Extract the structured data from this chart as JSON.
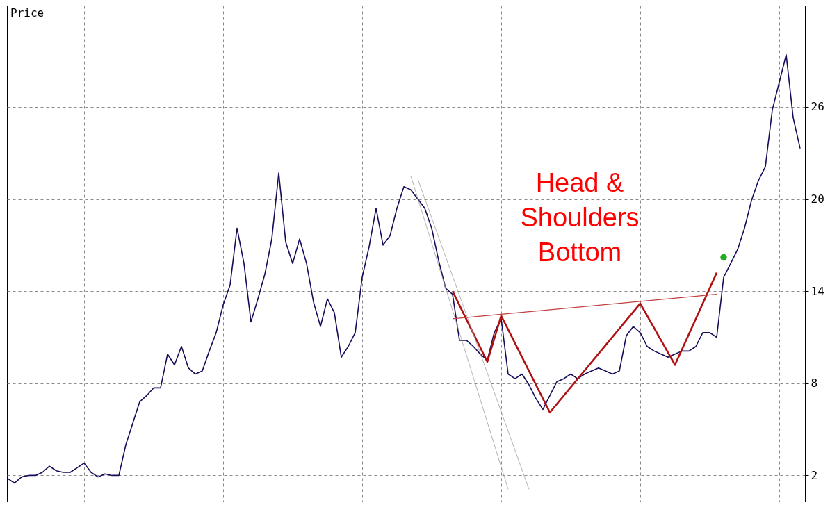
{
  "chart_data": {
    "type": "line",
    "ylabel": "Price",
    "annotations": [
      "Head & Shoulders Bottom"
    ],
    "categories": [
      null,
      null,
      null,
      null,
      null,
      null,
      null,
      null,
      null,
      null,
      null,
      null,
      null,
      null,
      null,
      null,
      null,
      null,
      null,
      null,
      null,
      null,
      null,
      null,
      null,
      null,
      null,
      null,
      null,
      null,
      null,
      null,
      null,
      null,
      null,
      null,
      null,
      null,
      null,
      null,
      null,
      null,
      null,
      null,
      null,
      null,
      null,
      null,
      null,
      null,
      null,
      null,
      null,
      null,
      null,
      null,
      null,
      null,
      null,
      null,
      null,
      null,
      null,
      null,
      null,
      null,
      null,
      null,
      null,
      null,
      null,
      null,
      null,
      null,
      null,
      null,
      null,
      null,
      null,
      null,
      null,
      null,
      null,
      null,
      null,
      null,
      null,
      null,
      null,
      null,
      null,
      null,
      null,
      null,
      null,
      null,
      null,
      null,
      null,
      null,
      null,
      null,
      null,
      null,
      null,
      null,
      null,
      null,
      null,
      null,
      null,
      null,
      null,
      null,
      null
    ],
    "ylim": [
      0.3,
      32.6
    ],
    "yticks": [
      2,
      8,
      14,
      20,
      26
    ],
    "grid": true,
    "tick_labels": "y",
    "series": [
      {
        "color": "#160c5a",
        "values": [
          1.8,
          1.5,
          1.9,
          2.0,
          2.0,
          2.2,
          2.6,
          2.3,
          2.2,
          2.2,
          2.5,
          2.8,
          2.2,
          1.9,
          2.1,
          2.0,
          2.0,
          4.0,
          5.4,
          6.8,
          7.2,
          7.7,
          7.7,
          9.9,
          9.2,
          10.4,
          9.0,
          8.6,
          8.8,
          10.1,
          11.3,
          13.1,
          14.4,
          18.1,
          15.8,
          12.0,
          13.5,
          15.1,
          17.4,
          21.7,
          17.2,
          15.8,
          17.4,
          15.8,
          13.3,
          11.7,
          13.5,
          12.6,
          9.7,
          10.4,
          11.3,
          14.9,
          16.9,
          19.4,
          17.0,
          17.6,
          19.4,
          20.8,
          20.6,
          20.0,
          19.4,
          18.1,
          16.0,
          14.2,
          13.8,
          10.8,
          10.8,
          10.4,
          9.9,
          9.5,
          11.3,
          12.2,
          8.6,
          8.3,
          8.6,
          7.9,
          7.0,
          6.3,
          7.2,
          8.1,
          8.3,
          8.6,
          8.3,
          8.6,
          8.8,
          9.0,
          8.8,
          8.6,
          8.8,
          11.1,
          11.7,
          11.3,
          10.4,
          10.1,
          9.9,
          9.7,
          9.9,
          10.1,
          10.1,
          10.4,
          11.3,
          11.3,
          11.0,
          14.9,
          15.8,
          16.7,
          18.1,
          19.9,
          21.2,
          22.1,
          25.8,
          27.6,
          29.4,
          25.3,
          23.3
        ]
      },
      {
        "color": "#b01010",
        "values": [
          null,
          null,
          null,
          null,
          null,
          null,
          null,
          null,
          null,
          null,
          null,
          null,
          null,
          null,
          null,
          null,
          null,
          null,
          null,
          null,
          null,
          null,
          null,
          null,
          null,
          null,
          null,
          null,
          null,
          null,
          null,
          null,
          null,
          null,
          null,
          null,
          null,
          null,
          null,
          null,
          null,
          null,
          null,
          null,
          null,
          null,
          null,
          null,
          null,
          null,
          null,
          null,
          null,
          null,
          null,
          null,
          null,
          null,
          null,
          null,
          null,
          null,
          null,
          null,
          14.0,
          null,
          null,
          null,
          null,
          9.4,
          null,
          12.4,
          null,
          null,
          null,
          null,
          null,
          null,
          6.1,
          null,
          null,
          null,
          null,
          null,
          null,
          null,
          null,
          null,
          null,
          null,
          null,
          13.2,
          null,
          null,
          null,
          null,
          9.2,
          null,
          null,
          null,
          null,
          null,
          15.2,
          null,
          null,
          null,
          null,
          null,
          null,
          null,
          null,
          null,
          null,
          null,
          null
        ]
      },
      {
        "color": "#c04040",
        "values": [
          null,
          null,
          null,
          null,
          null,
          null,
          null,
          null,
          null,
          null,
          null,
          null,
          null,
          null,
          null,
          null,
          null,
          null,
          null,
          null,
          null,
          null,
          null,
          null,
          null,
          null,
          null,
          null,
          null,
          null,
          null,
          null,
          null,
          null,
          null,
          null,
          null,
          null,
          null,
          null,
          null,
          null,
          null,
          null,
          null,
          null,
          null,
          null,
          null,
          null,
          null,
          null,
          null,
          null,
          null,
          null,
          null,
          null,
          null,
          null,
          null,
          null,
          null,
          null,
          12.2,
          null,
          null,
          null,
          null,
          null,
          null,
          null,
          null,
          null,
          null,
          null,
          null,
          null,
          null,
          null,
          null,
          null,
          null,
          null,
          null,
          null,
          null,
          null,
          null,
          null,
          null,
          null,
          null,
          null,
          null,
          null,
          null,
          null,
          null,
          null,
          null,
          null,
          13.8,
          null,
          null,
          null,
          null,
          null,
          null,
          null,
          null,
          null,
          null,
          null,
          null
        ]
      },
      {
        "color": "#a0a0a0",
        "values": [
          null,
          null,
          null,
          null,
          null,
          null,
          null,
          null,
          null,
          null,
          null,
          null,
          null,
          null,
          null,
          null,
          null,
          null,
          null,
          null,
          null,
          null,
          null,
          null,
          null,
          null,
          null,
          null,
          null,
          null,
          null,
          null,
          null,
          null,
          null,
          null,
          null,
          null,
          null,
          null,
          null,
          null,
          null,
          null,
          null,
          null,
          null,
          null,
          null,
          null,
          null,
          null,
          null,
          null,
          null,
          null,
          null,
          null,
          21.5,
          null,
          null,
          null,
          null,
          null,
          null,
          null,
          null,
          null,
          null,
          null,
          null,
          null,
          1.1,
          null,
          null,
          null,
          null,
          null,
          null,
          null,
          null,
          null,
          null,
          null,
          null,
          null,
          null,
          null,
          null,
          null,
          null,
          null,
          null,
          null,
          null,
          null,
          null,
          null,
          null,
          null,
          null,
          null,
          null,
          null,
          null,
          null,
          null,
          null,
          null,
          null,
          null,
          null,
          null,
          null,
          null
        ]
      },
      {
        "color": "#a0a0a0",
        "values": [
          null,
          null,
          null,
          null,
          null,
          null,
          null,
          null,
          null,
          null,
          null,
          null,
          null,
          null,
          null,
          null,
          null,
          null,
          null,
          null,
          null,
          null,
          null,
          null,
          null,
          null,
          null,
          null,
          null,
          null,
          null,
          null,
          null,
          null,
          null,
          null,
          null,
          null,
          null,
          null,
          null,
          null,
          null,
          null,
          null,
          null,
          null,
          null,
          null,
          null,
          null,
          null,
          null,
          null,
          null,
          null,
          null,
          null,
          null,
          21.3,
          null,
          null,
          null,
          null,
          null,
          null,
          null,
          null,
          null,
          null,
          null,
          null,
          null,
          null,
          null,
          1.1,
          null,
          null,
          null,
          null,
          null,
          null,
          null,
          null,
          null,
          null,
          null,
          null,
          null,
          null,
          null,
          null,
          null,
          null,
          null,
          null,
          null,
          null,
          null,
          null,
          null,
          null,
          null,
          null,
          null,
          null,
          null,
          null,
          null,
          null,
          null,
          null,
          null,
          null,
          null
        ]
      },
      {
        "type": "scatter",
        "color": "#22aa22",
        "values": [
          null,
          null,
          null,
          null,
          null,
          null,
          null,
          null,
          null,
          null,
          null,
          null,
          null,
          null,
          null,
          null,
          null,
          null,
          null,
          null,
          null,
          null,
          null,
          null,
          null,
          null,
          null,
          null,
          null,
          null,
          null,
          null,
          null,
          null,
          null,
          null,
          null,
          null,
          null,
          null,
          null,
          null,
          null,
          null,
          null,
          null,
          null,
          null,
          null,
          null,
          null,
          null,
          null,
          null,
          null,
          null,
          null,
          null,
          null,
          null,
          null,
          null,
          null,
          null,
          null,
          null,
          null,
          null,
          null,
          null,
          null,
          null,
          null,
          null,
          null,
          null,
          null,
          null,
          null,
          null,
          null,
          null,
          null,
          null,
          null,
          null,
          null,
          null,
          null,
          null,
          null,
          null,
          null,
          null,
          null,
          null,
          null,
          null,
          null,
          null,
          null,
          null,
          null,
          16.2,
          null,
          null,
          null,
          null,
          null,
          null,
          null,
          null,
          null,
          null,
          null
        ]
      }
    ]
  }
}
